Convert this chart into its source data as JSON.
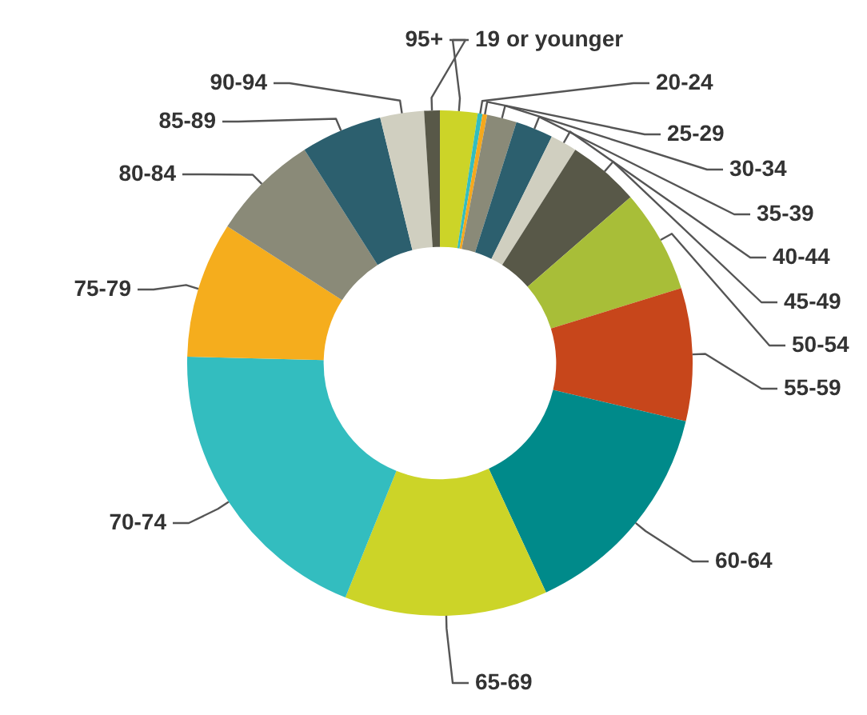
{
  "chart_data": {
    "type": "donut",
    "categories": [
      "19 or younger",
      "20-24",
      "25-29",
      "30-34",
      "35-39",
      "40-44",
      "45-49",
      "50-54",
      "55-59",
      "60-64",
      "65-69",
      "70-74",
      "75-79",
      "80-84",
      "85-89",
      "90-94",
      "95+"
    ],
    "values": [
      2.4,
      0.3,
      0.3,
      1.9,
      2.4,
      1.7,
      4.6,
      6.6,
      8.5,
      14.4,
      13.0,
      19.3,
      8.7,
      6.9,
      5.2,
      2.8,
      1.0
    ],
    "colors": [
      "#ccd428",
      "#33bdbf",
      "#f5a81d",
      "#8a8a78",
      "#2c5f6e",
      "#d0cfc0",
      "#585848",
      "#a8be38",
      "#c7461b",
      "#008a8a",
      "#ccd428",
      "#33bdbf",
      "#f5ad1d",
      "#8a8a78",
      "#2c5f6e",
      "#d0cfc0",
      "#585848"
    ],
    "legend": false
  }
}
